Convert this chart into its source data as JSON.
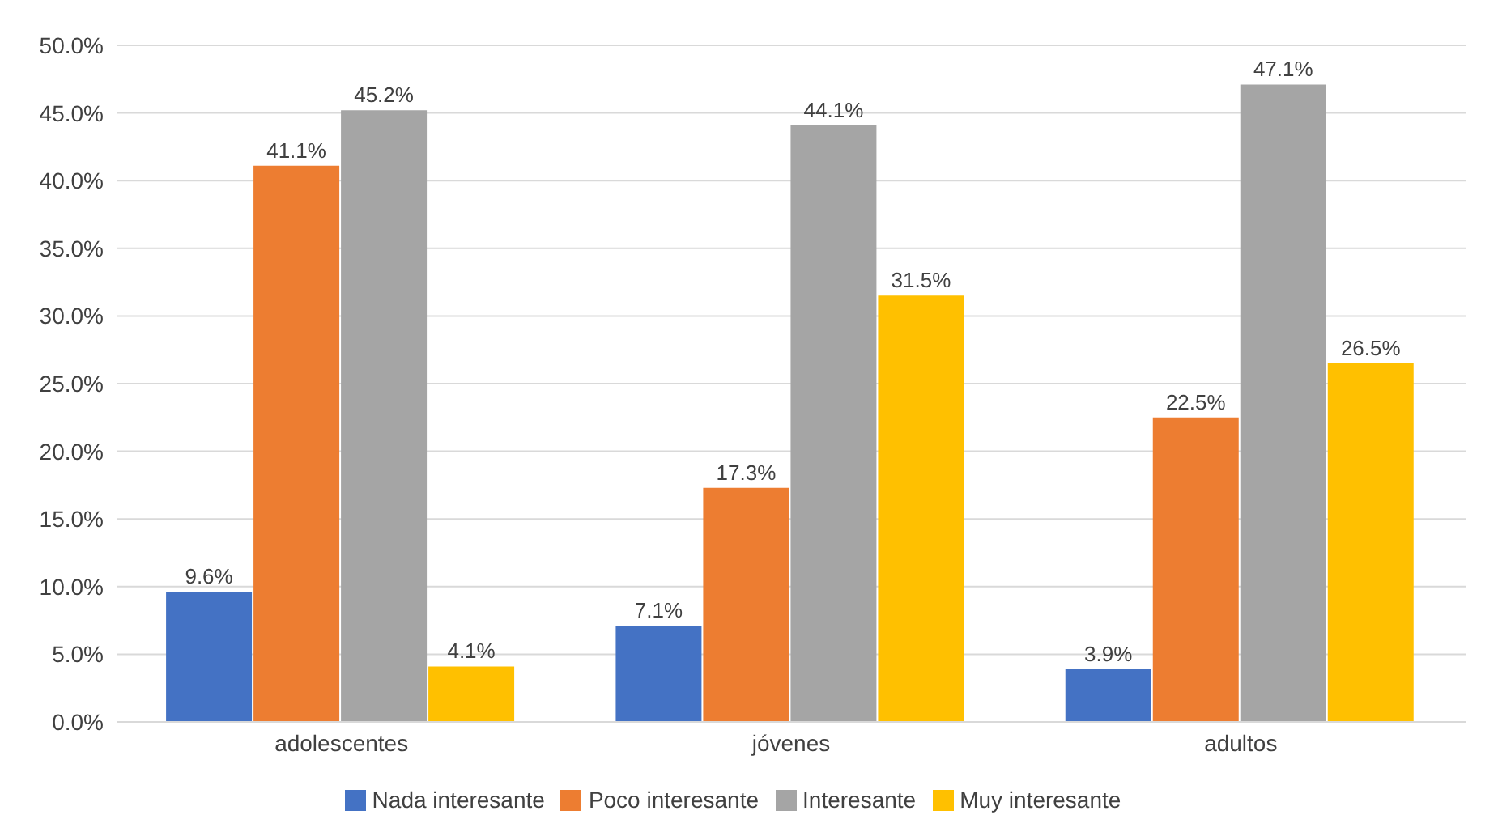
{
  "chart_data": {
    "type": "bar",
    "categories": [
      "adolescentes",
      "jóvenes",
      "adultos"
    ],
    "series": [
      {
        "name": "Nada interesante",
        "color": "#4472c4",
        "values": [
          9.6,
          7.1,
          3.9
        ],
        "value_labels": [
          "9.6%",
          "7.1%",
          "3.9%"
        ]
      },
      {
        "name": "Poco interesante",
        "color": "#ed7d31",
        "values": [
          41.1,
          17.3,
          22.5
        ],
        "value_labels": [
          "41.1%",
          "17.3%",
          "22.5%"
        ]
      },
      {
        "name": "Interesante",
        "color": "#a5a5a5",
        "values": [
          45.2,
          44.1,
          47.1
        ],
        "value_labels": [
          "45.2%",
          "44.1%",
          "47.1%"
        ]
      },
      {
        "name": "Muy interesante",
        "color": "#ffc000",
        "values": [
          4.1,
          31.5,
          26.5
        ],
        "value_labels": [
          "4.1%",
          "31.5%",
          "26.5%"
        ]
      }
    ],
    "ylim": [
      0,
      50
    ],
    "yticks": [
      {
        "value": 0,
        "label": "0.0%"
      },
      {
        "value": 5,
        "label": "5.0%"
      },
      {
        "value": 10,
        "label": "10.0%"
      },
      {
        "value": 15,
        "label": "15.0%"
      },
      {
        "value": 20,
        "label": "20.0%"
      },
      {
        "value": 25,
        "label": "25.0%"
      },
      {
        "value": 30,
        "label": "30.0%"
      },
      {
        "value": 35,
        "label": "35.0%"
      },
      {
        "value": 40,
        "label": "40.0%"
      },
      {
        "value": 45,
        "label": "45.0%"
      },
      {
        "value": 50,
        "label": "50.0%"
      }
    ],
    "grid": "y",
    "legend": "bottom"
  }
}
